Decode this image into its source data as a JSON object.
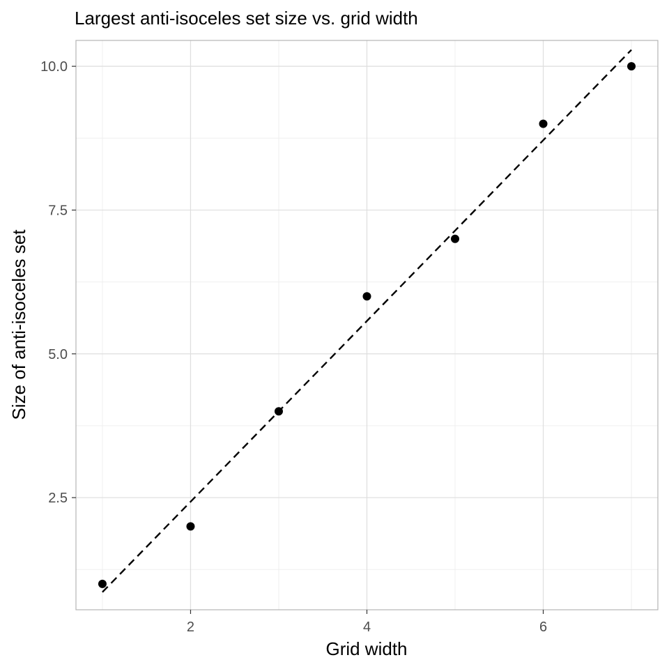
{
  "chart_data": {
    "type": "scatter",
    "title": "Largest anti-isoceles set size vs. grid width",
    "xlabel": "Grid width",
    "ylabel": "Size of anti-isoceles set",
    "xlim": [
      0.7,
      7.3
    ],
    "ylim": [
      0.55,
      10.45
    ],
    "x_ticks": [
      2,
      4,
      6
    ],
    "x_tick_labels": [
      "2",
      "4",
      "6"
    ],
    "x_minor_ticks": [
      1,
      3,
      5,
      7
    ],
    "y_ticks": [
      2.5,
      5.0,
      7.5,
      10.0
    ],
    "y_tick_labels": [
      "2.5",
      "5.0",
      "7.5",
      "10.0"
    ],
    "y_minor_ticks": [
      1.25,
      3.75,
      6.25,
      8.75
    ],
    "points": {
      "x": [
        1,
        2,
        3,
        4,
        5,
        6,
        7
      ],
      "y": [
        1,
        2,
        4,
        6,
        7,
        9,
        10
      ]
    },
    "trend_line": {
      "style": "dashed",
      "x": [
        1,
        7
      ],
      "y": [
        0.857,
        10.286
      ]
    },
    "grid": true,
    "legend": "none",
    "colors": {
      "points": "#000000",
      "trend_line": "#000000",
      "grid_major": "#dedede",
      "grid_minor": "#efefef",
      "panel_border": "#b3b3b3"
    }
  }
}
